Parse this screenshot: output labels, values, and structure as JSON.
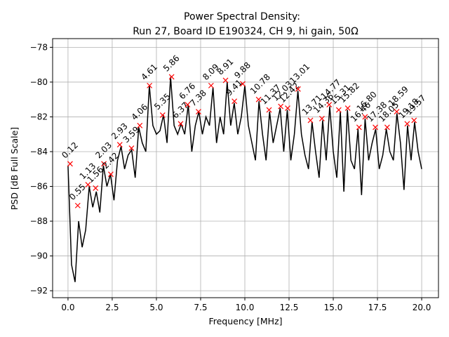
{
  "chart_data": {
    "type": "line",
    "title": "Power Spectral Density:",
    "subtitle": "Run 27, Board ID E190324, CH 9, hi gain, 50Ω",
    "x_label": "Frequency [MHz]",
    "y_label": "PSD [dB Full Scale]",
    "xlim": [
      -0.87,
      20.95
    ],
    "ylim": [
      -92.4,
      -77.5
    ],
    "xticks": [
      {
        "value": 0,
        "label": "0.0"
      },
      {
        "value": 2.5,
        "label": "2.5"
      },
      {
        "value": 5,
        "label": "5.0"
      },
      {
        "value": 7.5,
        "label": "7.5"
      },
      {
        "value": 10,
        "label": "10.0"
      },
      {
        "value": 12.5,
        "label": "12.5"
      },
      {
        "value": 15,
        "label": "15.0"
      },
      {
        "value": 17.5,
        "label": "17.5"
      },
      {
        "value": 20,
        "label": "20.0"
      }
    ],
    "yticks": [
      {
        "value": -92,
        "label": "−92"
      },
      {
        "value": -90,
        "label": "−90"
      },
      {
        "value": -88,
        "label": "−88"
      },
      {
        "value": -86,
        "label": "−86"
      },
      {
        "value": -84,
        "label": "−84"
      },
      {
        "value": -82,
        "label": "−82"
      },
      {
        "value": -80,
        "label": "−80"
      },
      {
        "value": -78,
        "label": "−78"
      }
    ],
    "grid": true,
    "series": [
      {
        "color": "#000000",
        "x": [
          0.0,
          0.2,
          0.4,
          0.6,
          0.8,
          1.0,
          1.2,
          1.4,
          1.6,
          1.8,
          2.0,
          2.2,
          2.4,
          2.6,
          2.8,
          3.0,
          3.2,
          3.4,
          3.6,
          3.8,
          4.0,
          4.2,
          4.4,
          4.6,
          4.8,
          5.0,
          5.2,
          5.4,
          5.6,
          5.8,
          6.0,
          6.2,
          6.4,
          6.6,
          6.8,
          7.0,
          7.2,
          7.4,
          7.6,
          7.8,
          8.0,
          8.2,
          8.4,
          8.6,
          8.8,
          9.0,
          9.2,
          9.4,
          9.6,
          9.8,
          10.0,
          10.2,
          10.4,
          10.6,
          10.8,
          11.0,
          11.2,
          11.4,
          11.6,
          11.8,
          12.0,
          12.2,
          12.4,
          12.6,
          12.8,
          13.0,
          13.2,
          13.4,
          13.6,
          13.8,
          14.0,
          14.2,
          14.4,
          14.6,
          14.8,
          15.0,
          15.2,
          15.4,
          15.6,
          15.8,
          16.0,
          16.2,
          16.4,
          16.6,
          16.8,
          17.0,
          17.2,
          17.4,
          17.6,
          17.8,
          18.0,
          18.2,
          18.4,
          18.6,
          18.8,
          19.0,
          19.2,
          19.4,
          19.6,
          19.8,
          20.0
        ],
        "values": [
          -84.8,
          -90.5,
          -91.5,
          -88.0,
          -89.5,
          -88.5,
          -86.0,
          -87.2,
          -86.3,
          -87.5,
          -84.8,
          -86.0,
          -85.3,
          -86.8,
          -84.5,
          -83.7,
          -85.0,
          -84.2,
          -83.9,
          -85.5,
          -82.6,
          -83.5,
          -84.0,
          -80.2,
          -82.5,
          -83.0,
          -82.8,
          -81.9,
          -83.5,
          -79.7,
          -82.5,
          -83.0,
          -82.4,
          -83.0,
          -81.3,
          -84.0,
          -82.5,
          -81.7,
          -83.0,
          -82.0,
          -82.5,
          -80.3,
          -83.5,
          -82.0,
          -83.0,
          -80.0,
          -82.5,
          -81.2,
          -83.0,
          -82.0,
          -80.2,
          -82.5,
          -83.5,
          -84.5,
          -81.1,
          -83.0,
          -84.5,
          -81.7,
          -83.5,
          -82.5,
          -81.5,
          -84.0,
          -81.6,
          -84.5,
          -83.0,
          -80.5,
          -83.0,
          -84.2,
          -85.0,
          -82.3,
          -84.0,
          -85.5,
          -82.2,
          -84.5,
          -81.4,
          -84.0,
          -85.5,
          -81.7,
          -86.3,
          -81.6,
          -84.5,
          -85.0,
          -82.7,
          -86.5,
          -82.1,
          -84.5,
          -83.5,
          -82.7,
          -85.0,
          -84.2,
          -82.7,
          -84.0,
          -84.5,
          -81.8,
          -83.5,
          -86.2,
          -82.5,
          -84.5,
          -82.3,
          -84.0,
          -85.0
        ]
      }
    ],
    "peaks": {
      "color": "#ff0000",
      "x": [
        0.12,
        0.55,
        1.13,
        1.56,
        2.03,
        2.42,
        2.93,
        3.59,
        4.06,
        4.61,
        5.35,
        5.86,
        6.37,
        6.76,
        7.38,
        8.09,
        8.91,
        9.41,
        9.88,
        10.78,
        11.37,
        12.03,
        12.42,
        13.01,
        13.71,
        14.36,
        14.77,
        15.31,
        15.82,
        16.46,
        16.8,
        17.38,
        18.05,
        18.59,
        19.18,
        19.57
      ],
      "values": [
        -84.7,
        -87.1,
        -85.9,
        -86.1,
        -84.7,
        -85.3,
        -83.6,
        -83.8,
        -82.5,
        -80.2,
        -81.9,
        -79.7,
        -82.4,
        -81.3,
        -81.7,
        -80.2,
        -79.9,
        -81.1,
        -80.1,
        -81.0,
        -81.6,
        -81.4,
        -81.5,
        -80.4,
        -82.2,
        -82.1,
        -81.3,
        -81.6,
        -81.5,
        -82.6,
        -82.0,
        -82.6,
        -82.6,
        -81.7,
        -82.4,
        -82.2
      ],
      "value_labels": [
        "0.12",
        "0.55",
        "1.13",
        "1.56",
        "2.03",
        "2.42",
        "2.93",
        "3.59",
        "4.06",
        "4.61",
        "5.35",
        "5.86",
        "6.37",
        "6.76",
        "7.38",
        "8.09",
        "8.91",
        "9.41",
        "9.88",
        "10.78",
        "11.37",
        "12.03",
        "12.42",
        "13.01",
        "13.71",
        "14.36",
        "14.77",
        "15.31",
        "15.82",
        "16.46",
        "16.80",
        "17.38",
        "18.05",
        "18.59",
        "19.18",
        "19.57"
      ]
    }
  }
}
